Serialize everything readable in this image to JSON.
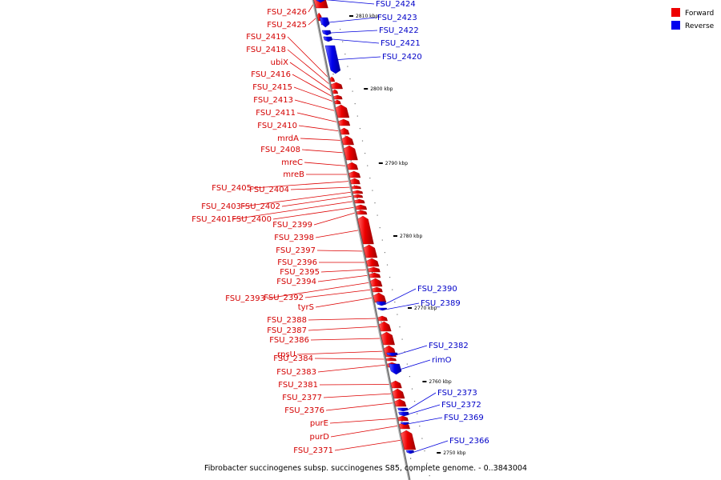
{
  "caption": "Fibrobacter succinogenes subsp. succinogenes S85, complete genome. - 0..3843004",
  "legend": [
    {
      "label": "Forward",
      "color": "#ee0000"
    },
    {
      "label": "Reverse",
      "color": "#0000ee"
    }
  ],
  "colors": {
    "forward": "#ee0000",
    "reverse": "#0000ee",
    "backbone": "#888888"
  },
  "ticks": [
    "2810 kbp",
    "2800 kbp",
    "2790 kbp",
    "2780 kbp",
    "2770 kbp",
    "2760 kbp",
    "2750 kbp"
  ],
  "forward_genes": [
    "FSU_2426",
    "FSU_2425",
    "FSU_2419",
    "FSU_2418",
    "ubiX",
    "FSU_2416",
    "FSU_2415",
    "FSU_2413",
    "FSU_2411",
    "FSU_2410",
    "mrdA",
    "FSU_2408",
    "mreC",
    "mreB",
    "FSU_2405",
    "FSU_2404",
    "FSU_2403",
    "FSU_2402",
    "FSU_2401",
    "FSU_2400",
    "FSU_2399",
    "FSU_2398",
    "FSU_2397",
    "FSU_2396",
    "FSU_2395",
    "FSU_2394",
    "FSU_2393",
    "FSU_2392",
    "tyrS",
    "FSU_2388",
    "FSU_2387",
    "FSU_2386",
    "rpsU",
    "FSU_2384",
    "FSU_2383",
    "FSU_2381",
    "FSU_2377",
    "FSU_2376",
    "purE",
    "purD",
    "FSU_2371"
  ],
  "reverse_genes": [
    "FSU_2424",
    "FSU_2423",
    "FSU_2422",
    "FSU_2421",
    "FSU_2420",
    "FSU_2390",
    "FSU_2389",
    "FSU_2382",
    "rimO",
    "FSU_2373",
    "FSU_2372",
    "FSU_2369",
    "FSU_2366"
  ]
}
